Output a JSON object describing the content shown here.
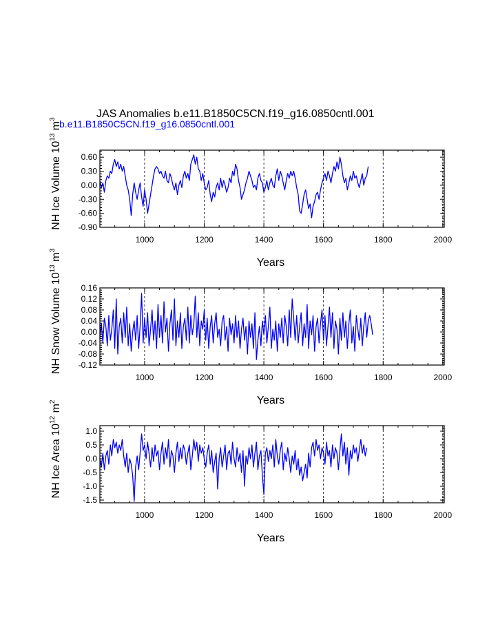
{
  "figure": {
    "title": "JAS Anomalies b.e11.B1850C5CN.f19_g16.0850cntl.001",
    "subtitle": "b.e11.B1850C5CN.f19_g16.0850cntl.001",
    "line_color": "#0000ff"
  },
  "chart_data": [
    {
      "type": "line",
      "ylabel_main": "NH Ice Volume 10",
      "ylabel_exp": "13",
      "ylabel_unit": " m",
      "ylabel_unit_exp": "3",
      "xlabel": "Years",
      "xlim": [
        850,
        2005
      ],
      "ylim": [
        -0.9,
        0.75
      ],
      "xticks": [
        1000,
        1200,
        1400,
        1600,
        1800,
        2000
      ],
      "yticks": [
        -0.9,
        -0.6,
        -0.3,
        0.0,
        0.3,
        0.6
      ],
      "ytick_labels": [
        "-0.90",
        "-0.60",
        "-0.30",
        "0.00",
        "0.30",
        "0.60"
      ],
      "grid": "vertical dashed",
      "series": [
        {
          "x_start": 850,
          "x_step": 5,
          "values": [
            0.1,
            -0.05,
            0.05,
            -0.15,
            0.1,
            0.2,
            0.15,
            0.3,
            0.25,
            0.45,
            0.55,
            0.4,
            0.5,
            0.35,
            0.45,
            0.3,
            0.4,
            0.2,
            0.0,
            -0.1,
            -0.3,
            -0.65,
            -0.2,
            0.05,
            -0.15,
            -0.3,
            -0.1,
            0.05,
            -0.25,
            -0.45,
            -0.1,
            -0.3,
            -0.6,
            -0.4,
            -0.2,
            0.0,
            0.2,
            0.35,
            0.4,
            0.35,
            0.25,
            0.3,
            0.2,
            0.15,
            0.3,
            0.1,
            0.05,
            0.25,
            0.15,
            0.0,
            -0.1,
            0.05,
            -0.2,
            0.0,
            0.1,
            -0.05,
            0.2,
            0.3,
            0.15,
            0.25,
            0.1,
            0.45,
            0.55,
            0.65,
            0.45,
            0.6,
            0.35,
            0.3,
            0.1,
            0.25,
            0.05,
            -0.1,
            -0.05,
            0.1,
            -0.2,
            -0.35,
            -0.15,
            -0.25,
            -0.05,
            0.05,
            -0.1,
            0.15,
            -0.05,
            0.1,
            0.0,
            -0.15,
            -0.05,
            0.15,
            0.05,
            0.3,
            0.2,
            0.45,
            0.35,
            0.1,
            -0.05,
            -0.3,
            -0.2,
            -0.1,
            0.05,
            0.15,
            0.3,
            0.2,
            0.1,
            -0.05,
            0.0,
            -0.1,
            0.15,
            0.25,
            0.1,
            0.05,
            -0.15,
            -0.05,
            0.1,
            -0.1,
            0.05,
            0.15,
            0.0,
            -0.05,
            0.2,
            0.35,
            0.1,
            0.3,
            0.2,
            0.05,
            -0.1,
            0.1,
            0.25,
            0.15,
            0.3,
            0.2,
            0.3,
            0.15,
            -0.05,
            -0.2,
            -0.55,
            -0.6,
            -0.4,
            -0.2,
            -0.1,
            -0.3,
            -0.5,
            -0.4,
            -0.7,
            -0.45,
            -0.35,
            -0.2,
            -0.15,
            -0.3,
            -0.1,
            0.05,
            0.15,
            0.25,
            0.1,
            0.3,
            0.2,
            0.05,
            0.25,
            0.4,
            0.3,
            0.5,
            0.35,
            0.6,
            0.45,
            0.2,
            0.05,
            0.15,
            -0.1,
            0.05,
            0.2,
            0.1,
            0.3,
            0.15,
            0.2,
            0.05,
            -0.05,
            0.1,
            0.25,
            0.0,
            0.15,
            0.2,
            0.4
          ]
        }
      ]
    },
    {
      "type": "line",
      "ylabel_main": "NH Snow Volume 10",
      "ylabel_exp": "13",
      "ylabel_unit": " m",
      "ylabel_unit_exp": "3",
      "xlabel": "Years",
      "xlim": [
        850,
        2005
      ],
      "ylim": [
        -0.12,
        0.16
      ],
      "xticks": [
        1000,
        1200,
        1400,
        1600,
        1800,
        2000
      ],
      "yticks": [
        -0.12,
        -0.08,
        -0.04,
        0.0,
        0.04,
        0.08,
        0.12,
        0.16
      ],
      "ytick_labels": [
        "-0.12",
        "-0.08",
        "-0.04",
        "0.00",
        "0.04",
        "0.08",
        "0.12",
        "0.16"
      ],
      "grid": "vertical dashed",
      "series": [
        {
          "x_start": 850,
          "x_step": 5,
          "values": [
            -0.02,
            0.03,
            -0.04,
            0.05,
            0.02,
            -0.05,
            0.06,
            -0.03,
            0.01,
            0.08,
            -0.06,
            0.12,
            -0.08,
            0.02,
            0.05,
            -0.04,
            0.07,
            -0.02,
            0.09,
            -0.05,
            0.03,
            -0.07,
            0.0,
            0.04,
            -0.03,
            0.06,
            -0.06,
            0.02,
            0.14,
            -0.04,
            0.05,
            -0.02,
            0.07,
            -0.05,
            0.01,
            0.08,
            -0.03,
            0.04,
            -0.06,
            0.1,
            -0.02,
            0.06,
            -0.04,
            0.11,
            0.0,
            0.05,
            -0.07,
            0.03,
            0.08,
            -0.03,
            0.12,
            -0.05,
            0.04,
            -0.02,
            0.07,
            -0.06,
            0.02,
            0.05,
            -0.03,
            0.09,
            -0.04,
            0.06,
            -0.01,
            0.03,
            0.13,
            -0.02,
            0.07,
            -0.05,
            0.04,
            0.01,
            0.08,
            -0.03,
            0.05,
            -0.06,
            0.02,
            0.06,
            -0.04,
            0.03,
            0.07,
            -0.02,
            0.01,
            -0.05,
            0.04,
            0.06,
            -0.03,
            0.02,
            -0.07,
            0.05,
            -0.01,
            0.03,
            -0.04,
            0.06,
            -0.02,
            0.04,
            -0.06,
            0.01,
            0.05,
            -0.03,
            0.02,
            -0.08,
            0.04,
            -0.02,
            0.03,
            -0.06,
            0.07,
            -0.1,
            -0.03,
            0.02,
            -0.05,
            0.04,
            -0.01,
            0.06,
            -0.04,
            0.02,
            0.09,
            -0.06,
            0.01,
            -0.03,
            0.04,
            -0.07,
            0.03,
            -0.02,
            0.05,
            -0.04,
            0.06,
            0.02,
            -0.05,
            0.08,
            -0.02,
            0.12,
            0.05,
            -0.03,
            0.06,
            -0.04,
            0.02,
            0.07,
            -0.05,
            0.03,
            -0.02,
            0.1,
            -0.06,
            0.04,
            -0.01,
            0.06,
            -0.07,
            0.02,
            0.05,
            -0.04,
            0.03,
            0.08,
            -0.03,
            0.06,
            -0.05,
            0.02,
            0.09,
            -0.02,
            0.07,
            -0.06,
            0.04,
            0.01,
            -0.08,
            0.05,
            -0.03,
            0.07,
            -0.02,
            0.04,
            -0.06,
            0.03,
            0.08,
            -0.04,
            0.02,
            -0.07,
            0.06,
            0.01,
            -0.03,
            0.05,
            -0.05,
            0.02,
            0.07,
            -0.02,
            0.04,
            0.06,
            0.03,
            -0.01
          ]
        }
      ]
    },
    {
      "type": "line",
      "ylabel_main": "NH Ice Area 10",
      "ylabel_exp": "12",
      "ylabel_unit": " m",
      "ylabel_unit_exp": "2",
      "xlabel": "Years",
      "xlim": [
        850,
        2005
      ],
      "ylim": [
        -1.6,
        1.2
      ],
      "xticks": [
        1000,
        1200,
        1400,
        1600,
        1800,
        2000
      ],
      "yticks": [
        -1.5,
        -1.0,
        -0.5,
        0.0,
        0.5,
        1.0
      ],
      "ytick_labels": [
        "-1.5",
        "-1.0",
        "-0.5",
        "0.0",
        "0.5",
        "1.0"
      ],
      "grid": "vertical dashed",
      "series": [
        {
          "x_start": 850,
          "x_step": 5,
          "values": [
            0.0,
            -0.3,
            0.2,
            -0.4,
            0.1,
            0.3,
            -0.2,
            0.5,
            0.1,
            0.7,
            0.4,
            0.6,
            0.2,
            0.5,
            0.3,
            0.7,
            0.1,
            -0.3,
            0.2,
            -0.5,
            0.0,
            -0.2,
            -0.6,
            -1.55,
            -0.3,
            0.1,
            -0.4,
            0.2,
            0.9,
            0.3,
            0.5,
            0.0,
            0.6,
            0.2,
            -0.3,
            0.4,
            -0.1,
            0.5,
            0.1,
            0.3,
            -0.4,
            0.2,
            0.6,
            -0.2,
            0.4,
            0.0,
            0.7,
            -0.3,
            0.3,
            0.1,
            -0.5,
            0.2,
            0.6,
            -0.1,
            0.4,
            0.0,
            0.5,
            0.3,
            -0.2,
            0.2,
            0.5,
            -0.4,
            0.1,
            0.7,
            0.3,
            0.6,
            -0.1,
            0.5,
            0.2,
            0.4,
            0.0,
            -0.3,
            0.2,
            0.5,
            -0.2,
            0.3,
            -0.5,
            -0.1,
            0.2,
            -1.1,
            0.0,
            0.4,
            -0.3,
            0.1,
            0.5,
            -0.4,
            0.2,
            0.3,
            -0.2,
            0.6,
            0.0,
            -0.3,
            0.4,
            -0.1,
            0.2,
            -0.5,
            0.3,
            -1.0,
            0.1,
            -0.2,
            0.4,
            0.0,
            0.5,
            -0.3,
            0.2,
            0.6,
            -0.4,
            0.1,
            0.3,
            -0.6,
            -1.3,
            0.2,
            0.4,
            -0.1,
            0.3,
            0.0,
            0.5,
            -0.3,
            0.7,
            0.1,
            -0.2,
            0.3,
            0.6,
            -0.4,
            0.2,
            -0.1,
            0.4,
            0.0,
            -0.5,
            0.1,
            -0.2,
            0.3,
            -0.4,
            0.0,
            -0.6,
            -0.3,
            -0.8,
            -0.5,
            -0.2,
            -0.7,
            0.2,
            -0.3,
            0.4,
            0.6,
            0.1,
            0.7,
            0.3,
            0.5,
            0.0,
            0.4,
            0.2,
            -0.2,
            0.6,
            0.1,
            0.3,
            -0.3,
            0.5,
            0.0,
            0.4,
            0.2,
            -0.4,
            0.3,
            0.9,
            0.1,
            0.6,
            -0.2,
            0.4,
            -0.6,
            0.3,
            0.0,
            0.5,
            0.2,
            0.4,
            -0.1,
            0.3,
            0.7,
            0.2,
            0.5,
            0.1,
            0.4
          ]
        }
      ]
    }
  ]
}
